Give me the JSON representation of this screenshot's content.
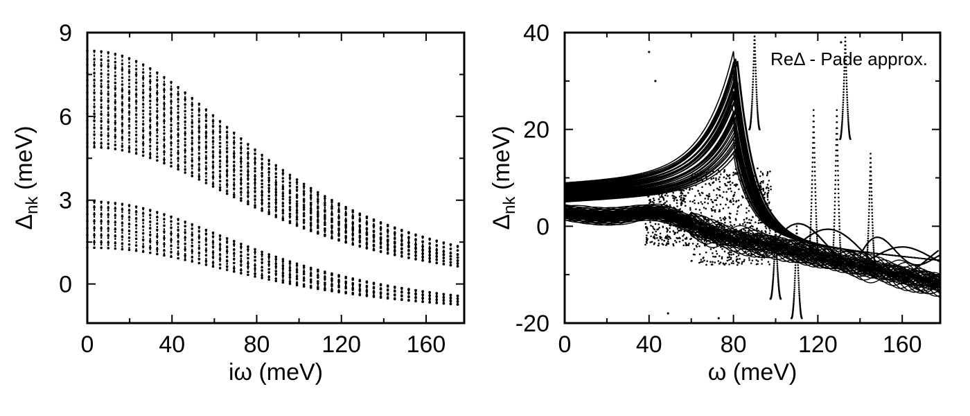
{
  "chart_data": [
    {
      "type": "scatter",
      "xlabel": "iω (meV)",
      "ylabel_main": "Δ",
      "ylabel_sub": "nk",
      "ylabel_unit": " (meV)",
      "xlim": [
        0,
        178
      ],
      "ylim": [
        -1.4,
        9
      ],
      "xticks": [
        0,
        40,
        80,
        120,
        160
      ],
      "yticks": [
        0,
        3,
        6,
        9
      ],
      "series": [
        {
          "values_at_zero": [
            8.35,
            8.05,
            7.85,
            7.55,
            7.3,
            7.1,
            6.85,
            6.6,
            6.35,
            6.1,
            5.85,
            5.6,
            5.35,
            5.05,
            4.9
          ],
          "values_at_178": [
            1.3,
            1.15,
            1.0,
            0.9,
            0.8,
            0.7,
            0.6
          ]
        },
        {
          "values_at_zero": [
            2.95,
            2.75,
            2.5,
            2.25,
            2.0,
            1.75,
            1.5,
            1.3
          ],
          "values_at_178": [
            -0.45,
            -0.55,
            -0.65,
            -0.75
          ]
        }
      ],
      "point_spacing": 3.3
    },
    {
      "type": "scatter",
      "xlabel": "ω (meV)",
      "ylabel_main": "Δ",
      "ylabel_sub": "nk",
      "ylabel_unit": " (meV)",
      "xlim": [
        0,
        178
      ],
      "ylim": [
        -20,
        40
      ],
      "xticks": [
        0,
        40,
        80,
        120,
        160
      ],
      "yticks": [
        -20,
        0,
        20,
        40
      ],
      "annotation": "ReΔ - Pade approx."
    }
  ]
}
